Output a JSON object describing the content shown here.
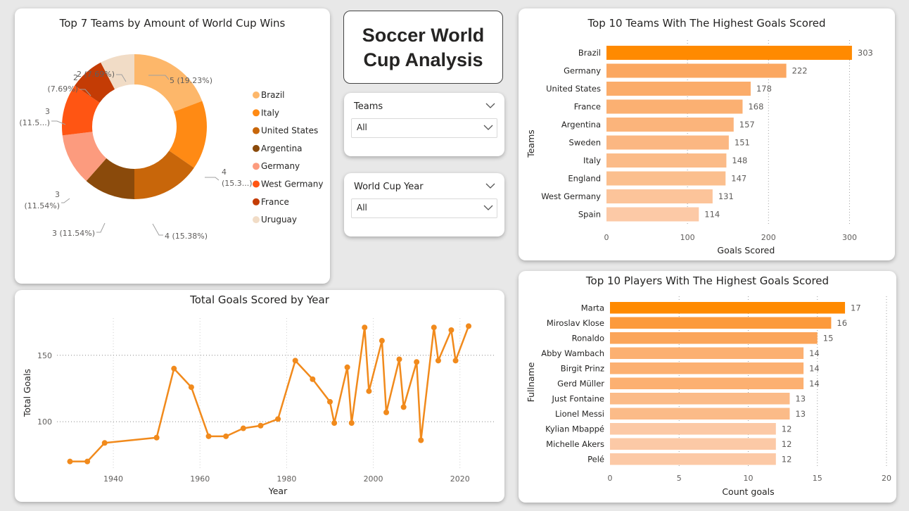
{
  "title_card": {
    "line1": "Soccer World",
    "line2": "Cup Analysis"
  },
  "slicers": [
    {
      "label": "Teams",
      "value": "All"
    },
    {
      "label": "World Cup Year",
      "value": "All"
    }
  ],
  "colors": {
    "accent": "#ff8a00",
    "line": "#f18a1c",
    "grid": "#bdbdbd"
  },
  "chart_data": [
    {
      "type": "pie",
      "title": "Top 7 Teams by Amount of World Cup Wins",
      "legend_position": "right",
      "slices": [
        {
          "label": "Brazil",
          "value": 5,
          "display": "5 (19.23%)",
          "color": "#fdb76a"
        },
        {
          "label": "Italy",
          "value": 4,
          "display": "4\n(15.3...)",
          "color": "#ff8a14"
        },
        {
          "label": "United States",
          "value": 4,
          "display": "4 (15.38%)",
          "color": "#c8660a"
        },
        {
          "label": "Argentina",
          "value": 3,
          "display": "3 (11.54%)",
          "color": "#8a4a0b"
        },
        {
          "label": "Germany",
          "value": 3,
          "display": "3\n(11.54%)",
          "color": "#fc9b7e"
        },
        {
          "label": "West Germany",
          "value": 3,
          "display": "3\n(11.5...)",
          "color": "#ff5513"
        },
        {
          "label": "France",
          "value": 2,
          "display": "2\n(7.69%)",
          "color": "#c43c05"
        },
        {
          "label": "Uruguay",
          "value": 2,
          "display": "2 (7.69%)",
          "color": "#f1dcc6"
        }
      ]
    },
    {
      "type": "bar",
      "orientation": "horizontal",
      "title": "Top 10 Teams With The Highest Goals Scored",
      "xlabel": "Goals Scored",
      "ylabel": "Teams",
      "xlim": [
        0,
        330
      ],
      "xticks": [
        0,
        100,
        200,
        300
      ],
      "categories": [
        "Brazil",
        "Germany",
        "United States",
        "France",
        "Argentina",
        "Sweden",
        "Italy",
        "England",
        "West Germany",
        "Spain"
      ],
      "values": [
        303,
        222,
        178,
        168,
        157,
        151,
        148,
        147,
        131,
        114
      ],
      "colors": [
        "#ff8a00",
        "#fba760",
        "#fbac6a",
        "#fbb072",
        "#fbb47b",
        "#fbb782",
        "#fbbb88",
        "#fbbf8e",
        "#fcc49a",
        "#fcc9a6"
      ]
    },
    {
      "type": "bar",
      "orientation": "horizontal",
      "title": "Top 10 Players With The Highest Goals Scored",
      "xlabel": "Count goals",
      "ylabel": "Fullname",
      "xlim": [
        0,
        20
      ],
      "xticks": [
        0,
        5,
        10,
        15,
        20
      ],
      "categories": [
        "Marta",
        "Miroslav Klose",
        "Ronaldo",
        "Abby Wambach",
        "Birgit Prinz",
        "Gerd Müller",
        "Just Fontaine",
        "Lionel Messi",
        "Kylian Mbappé",
        "Michelle Akers",
        "Pelé"
      ],
      "values": [
        17,
        16,
        15,
        14,
        14,
        14,
        13,
        13,
        12,
        12,
        12
      ],
      "colors": [
        "#ff8a00",
        "#fc9a3c",
        "#fba55a",
        "#fcb071",
        "#fcb071",
        "#fcb071",
        "#fbbb88",
        "#fbbb88",
        "#fcc9a6",
        "#fcc9a6",
        "#fcc9a6"
      ]
    },
    {
      "type": "line",
      "title": "Total Goals Scored by Year",
      "xlabel": "Year",
      "ylabel": "Total Goals",
      "xlim": [
        1927,
        2028
      ],
      "ylim": [
        64,
        178
      ],
      "xticks": [
        1940,
        1960,
        1980,
        2000,
        2020
      ],
      "yticks": [
        100,
        150
      ],
      "x": [
        1930,
        1934,
        1938,
        1950,
        1954,
        1958,
        1962,
        1966,
        1970,
        1974,
        1978,
        1982,
        1986,
        1990,
        1991,
        1994,
        1995,
        1998,
        1999,
        2002,
        2003,
        2006,
        2007,
        2010,
        2011,
        2014,
        2015,
        2018,
        2019,
        2022
      ],
      "y": [
        70,
        70,
        84,
        88,
        140,
        126,
        89,
        89,
        95,
        97,
        102,
        146,
        132,
        115,
        99,
        141,
        99,
        171,
        123,
        161,
        107,
        147,
        111,
        145,
        86,
        171,
        146,
        169,
        146,
        172
      ]
    }
  ]
}
